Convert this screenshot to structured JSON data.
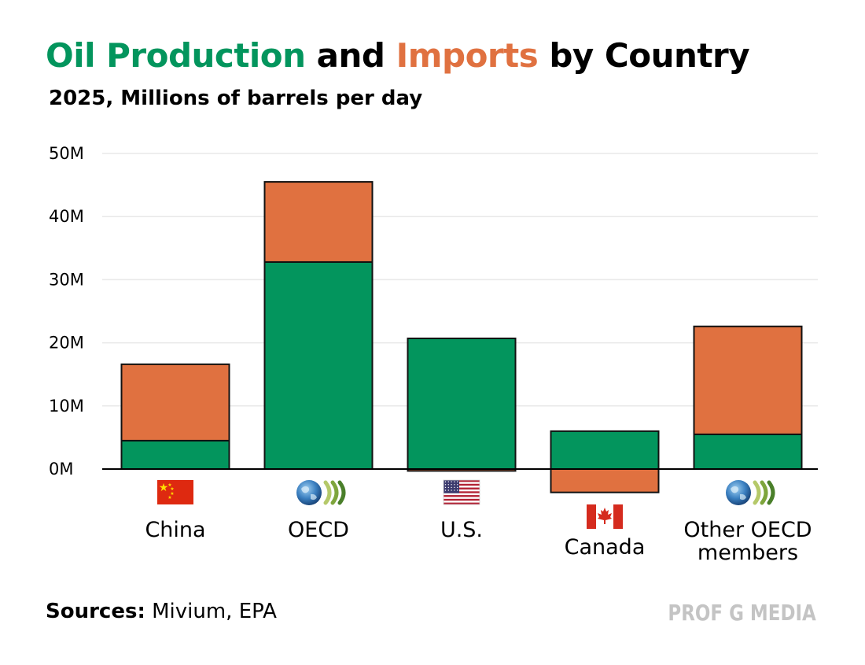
{
  "title": {
    "part1": "Oil Production",
    "part2": " and ",
    "part3": "Imports",
    "part4": " by Country"
  },
  "subtitle": "2025, Millions of barrels per day",
  "colors": {
    "production": "#03955d",
    "imports": "#e07140",
    "grid": "#e8e8e8",
    "axis": "#000000",
    "brand": "#c4c4c4"
  },
  "chart_data": {
    "type": "bar",
    "stacked": true,
    "title": "Oil Production and Imports by Country",
    "subtitle": "2025, Millions of barrels per day",
    "categories": [
      "China",
      "OECD",
      "U.S.",
      "Canada",
      "Other OECD members"
    ],
    "category_lines": [
      [
        "China"
      ],
      [
        "OECD"
      ],
      [
        "U.S."
      ],
      [
        "Canada"
      ],
      [
        "Other OECD",
        "members"
      ]
    ],
    "flags": [
      "china-flag",
      "oecd-logo",
      "us-flag",
      "canada-flag",
      "oecd-logo"
    ],
    "series": [
      {
        "name": "Production",
        "color": "#03955d",
        "values": [
          4.5,
          32.8,
          20.7,
          6.0,
          5.5
        ]
      },
      {
        "name": "Imports",
        "color": "#e07140",
        "values": [
          12.1,
          12.7,
          -0.3,
          -3.7,
          17.1
        ]
      }
    ],
    "yticks": [
      0,
      10,
      20,
      30,
      40,
      50
    ],
    "ytick_labels": [
      "0M",
      "10M",
      "20M",
      "30M",
      "40M",
      "50M"
    ],
    "ylim": [
      -5,
      50
    ],
    "xlabel": "",
    "ylabel": "",
    "grid": true
  },
  "footer": {
    "sources_label": "Sources:",
    "sources_text": " Mivium, EPA",
    "brand": "PROF G MEDIA"
  }
}
